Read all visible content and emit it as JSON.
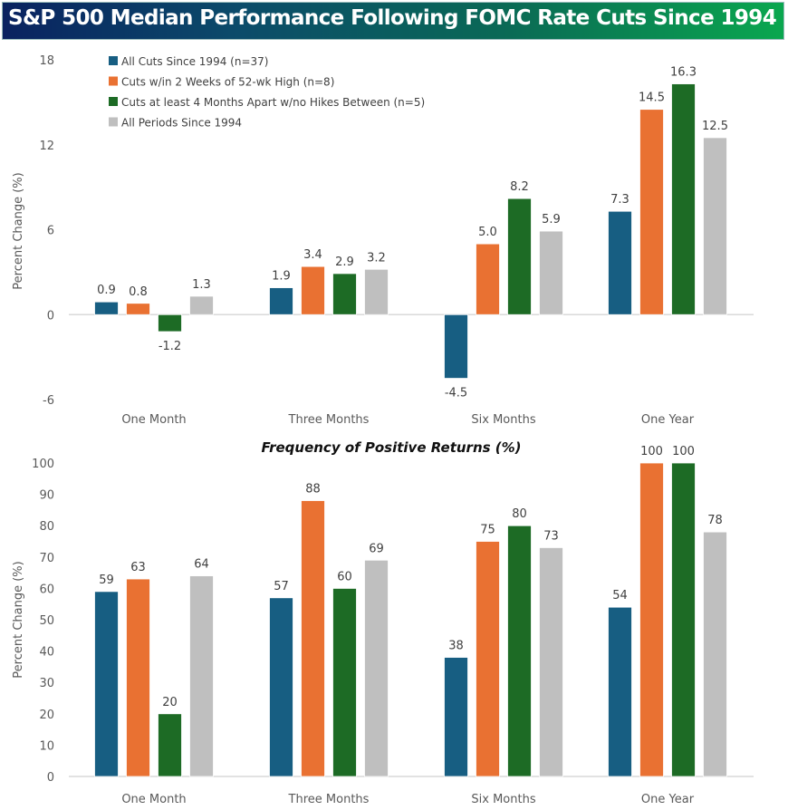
{
  "header": {
    "title": "S&P 500 Median Performance Following FOMC Rate Cuts Since 1994 (%)"
  },
  "colors": {
    "series": [
      "#175e82",
      "#e97132",
      "#1d6b25",
      "#bfbfbf"
    ],
    "axis": "#d9d9d9"
  },
  "chart_data": [
    {
      "type": "bar",
      "title": "S&P 500 Median Performance Following FOMC Rate Cuts Since 1994 (%)",
      "xlabel": "",
      "ylabel": "Percent Change (%)",
      "ylim": [
        -6,
        18
      ],
      "yticks": [
        "-6",
        "0",
        "6",
        "12",
        "18"
      ],
      "ytick_values": [
        -6,
        0,
        6,
        12,
        18
      ],
      "grid": false,
      "legend_position": "top-left",
      "categories": [
        "One Month",
        "Three Months",
        "Six Months",
        "One Year"
      ],
      "series": [
        {
          "name": "All Cuts Since 1994 (n=37)",
          "values": [
            0.9,
            1.9,
            -4.5,
            7.3
          ],
          "labels": [
            "0.9",
            "1.9",
            "-4.5",
            "7.3"
          ]
        },
        {
          "name": "Cuts w/in 2 Weeks of 52-wk High (n=8)",
          "values": [
            0.8,
            3.4,
            5.0,
            14.5
          ],
          "labels": [
            "0.8",
            "3.4",
            "5.0",
            "14.5"
          ]
        },
        {
          "name": "Cuts at least 4 Months Apart w/no Hikes Between (n=5)",
          "values": [
            -1.2,
            2.9,
            8.2,
            16.3
          ],
          "labels": [
            "-1.2",
            "2.9",
            "8.2",
            "16.3"
          ]
        },
        {
          "name": "All Periods Since 1994",
          "values": [
            1.3,
            3.2,
            5.9,
            12.5
          ],
          "labels": [
            "1.3",
            "3.2",
            "5.9",
            "12.5"
          ]
        }
      ]
    },
    {
      "type": "bar",
      "title": "Frequency of Positive Returns (%)",
      "xlabel": "",
      "ylabel": "Percent Change (%)",
      "ylim": [
        0,
        100
      ],
      "yticks": [
        "0",
        "10",
        "20",
        "30",
        "40",
        "50",
        "60",
        "70",
        "80",
        "90",
        "100"
      ],
      "ytick_values": [
        0,
        10,
        20,
        30,
        40,
        50,
        60,
        70,
        80,
        90,
        100
      ],
      "grid": false,
      "categories": [
        "One Month",
        "Three Months",
        "Six Months",
        "One Year"
      ],
      "series": [
        {
          "name": "All Cuts Since 1994 (n=37)",
          "values": [
            59,
            57,
            38,
            54
          ],
          "labels": [
            "59",
            "57",
            "38",
            "54"
          ]
        },
        {
          "name": "Cuts w/in 2 Weeks of 52-wk High (n=8)",
          "values": [
            63,
            88,
            75,
            100
          ],
          "labels": [
            "63",
            "88",
            "75",
            "100"
          ]
        },
        {
          "name": "Cuts at least 4 Months Apart w/no Hikes Between (n=5)",
          "values": [
            20,
            60,
            80,
            100
          ],
          "labels": [
            "20",
            "60",
            "80",
            "100"
          ]
        },
        {
          "name": "All Periods Since 1994",
          "values": [
            64,
            69,
            73,
            78
          ],
          "labels": [
            "64",
            "69",
            "73",
            "78"
          ]
        }
      ]
    }
  ]
}
